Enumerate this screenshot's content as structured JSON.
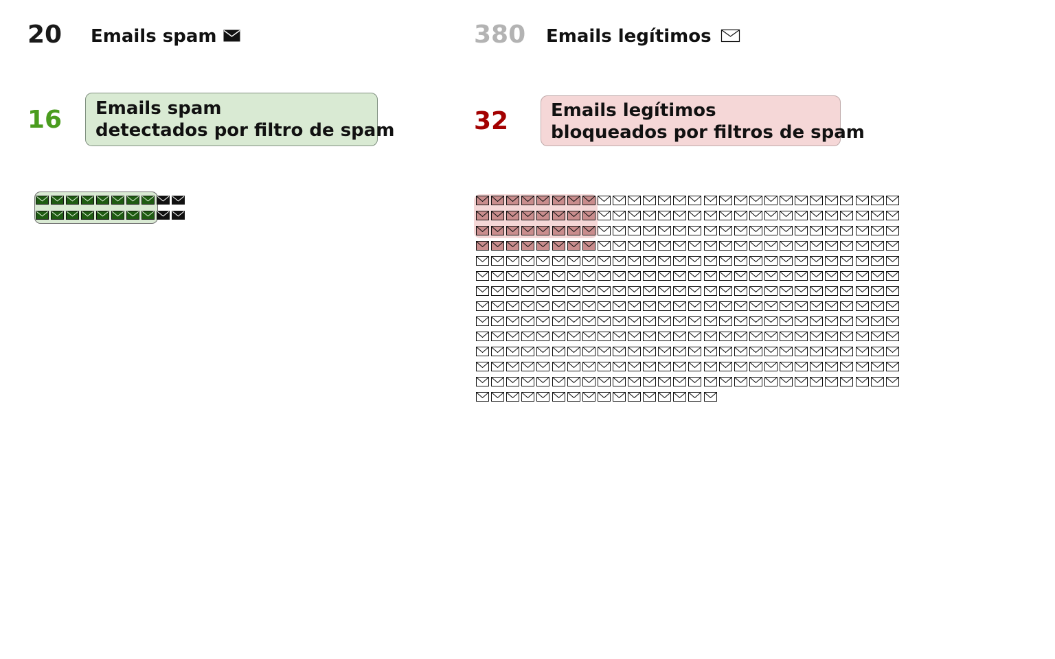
{
  "spam_total": {
    "count": "20",
    "label": "Emails spam",
    "icon": "envelope-filled-icon",
    "color": "#1a1a1a"
  },
  "legit_total": {
    "count": "380",
    "label": "Emails legítimos",
    "icon": "envelope-outline-icon",
    "color": "#b3b3b3"
  },
  "spam_detected": {
    "count": "16",
    "line1": "Emails spam",
    "line2": "detectados por filtro de spam",
    "count_color": "#4a9c1e",
    "box_color": "#d9ead3",
    "envelope_color": "#1e5b12"
  },
  "legit_blocked": {
    "count": "32",
    "line1": "Emails legítimos",
    "line2": "bloqueados por filtros de spam",
    "count_color": "#a30000",
    "box_color": "#f5d7d7",
    "envelope_color": "#c98d8d"
  },
  "chart_data": {
    "type": "table",
    "spam": {
      "total": 20,
      "detected": 16,
      "per_row": 10
    },
    "legit": {
      "total": 380,
      "blocked": 32,
      "per_row": 28
    }
  }
}
